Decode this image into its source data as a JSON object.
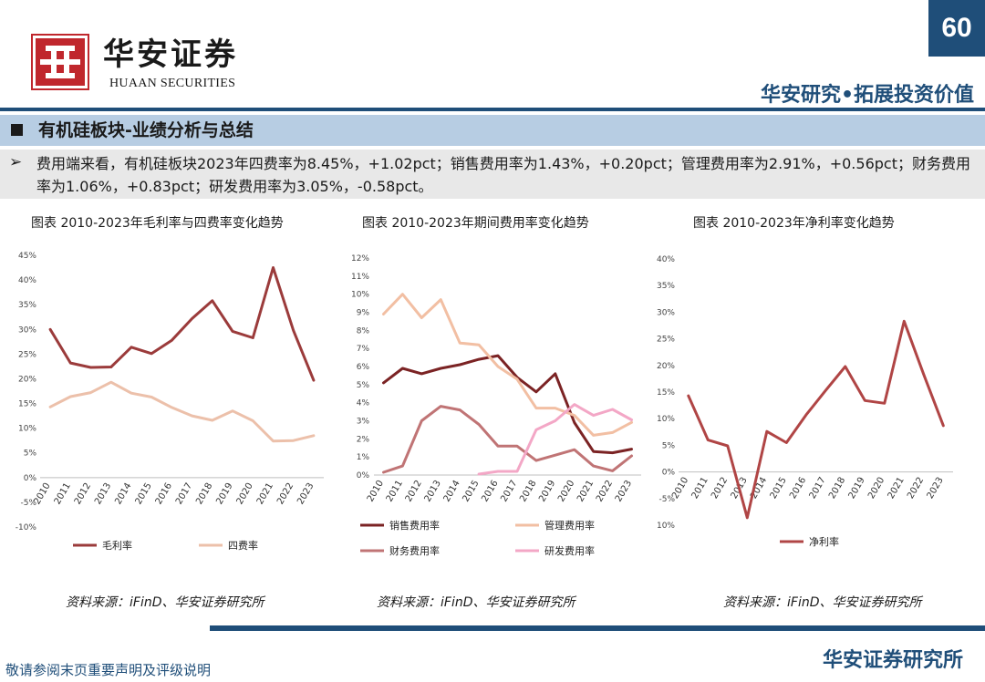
{
  "header": {
    "logo_cn": "华安证券",
    "logo_en": "HUAAN SECURITIES",
    "page_number": "60",
    "slogan": "华安研究•拓展投资价值",
    "brand_color": "#1f4e79",
    "logo_color": "#c0272d"
  },
  "section": {
    "title": "有机硅板块-业绩分析与总结",
    "bullet": "➢",
    "summary": "费用端来看，有机硅板块2023年四费率为8.45%，+1.02pct；销售费用率为1.43%，+0.20pct；管理费用率为2.91%，+0.56pct；财务费用率为1.06%，+0.83pct；研发费用率为3.05%，-0.58pct。"
  },
  "charts": {
    "titles": [
      "图表 2010-2023年毛利率与四费率变化趋势",
      "图表 2010-2023年期间费用率变化趋势",
      "图表 2010-2023年净利率变化趋势"
    ],
    "source": "资料来源：iFinD、华安证券研究所"
  },
  "chart_data": [
    {
      "type": "line",
      "title": "图表 2010-2023年毛利率与四费率变化趋势",
      "x": [
        "2010",
        "2011",
        "2012",
        "2013",
        "2014",
        "2015",
        "2016",
        "2017",
        "2018",
        "2019",
        "2020",
        "2021",
        "2022",
        "2023"
      ],
      "ylim": [
        -10,
        45
      ],
      "yticks": [
        -10,
        -5,
        0,
        5,
        10,
        15,
        20,
        25,
        30,
        35,
        40,
        45
      ],
      "series": [
        {
          "name": "毛利率",
          "color": "#9b3b3b",
          "values": [
            30.0,
            23.2,
            22.3,
            22.4,
            26.4,
            25.1,
            27.8,
            32.2,
            35.8,
            29.6,
            28.3,
            42.5,
            29.8,
            19.7
          ]
        },
        {
          "name": "四费率",
          "color": "#ecc0aa",
          "values": [
            14.3,
            16.4,
            17.2,
            19.3,
            17.1,
            16.3,
            14.2,
            12.5,
            11.6,
            13.5,
            11.5,
            7.4,
            7.5,
            8.5
          ]
        }
      ]
    },
    {
      "type": "line",
      "title": "图表 2010-2023年期间费用率变化趋势",
      "x": [
        "2010",
        "2011",
        "2012",
        "2013",
        "2014",
        "2015",
        "2016",
        "2017",
        "2018",
        "2019",
        "2020",
        "2021",
        "2022",
        "2023"
      ],
      "ylim": [
        0,
        12
      ],
      "yticks": [
        0,
        1,
        2,
        3,
        4,
        5,
        6,
        7,
        8,
        9,
        10,
        11,
        12
      ],
      "series": [
        {
          "name": "销售费用率",
          "color": "#7b2324",
          "values": [
            5.1,
            5.9,
            5.6,
            5.9,
            6.1,
            6.4,
            6.6,
            5.4,
            4.6,
            5.6,
            2.9,
            1.3,
            1.23,
            1.43
          ]
        },
        {
          "name": "管理费用率",
          "color": "#f2bfa3",
          "values": [
            8.9,
            10.0,
            8.7,
            9.7,
            7.3,
            7.2,
            6.0,
            5.3,
            3.7,
            3.7,
            3.3,
            2.2,
            2.35,
            2.91
          ]
        },
        {
          "name": "财务费用率",
          "color": "#c07475",
          "values": [
            0.15,
            0.5,
            3.0,
            3.8,
            3.6,
            2.8,
            1.6,
            1.6,
            0.8,
            1.1,
            1.4,
            0.5,
            0.23,
            1.06
          ]
        },
        {
          "name": "研发费用率",
          "color": "#f3a7c6",
          "values": [
            null,
            null,
            null,
            null,
            null,
            0.05,
            0.2,
            0.2,
            2.5,
            3.0,
            3.9,
            3.3,
            3.63,
            3.05
          ]
        }
      ]
    },
    {
      "type": "line",
      "title": "图表 2010-2023年净利率变化趋势",
      "x": [
        "2010",
        "2011",
        "2012",
        "2013",
        "2014",
        "2015",
        "2016",
        "2017",
        "2018",
        "2019",
        "2020",
        "2021",
        "2022",
        "2023"
      ],
      "ylim": [
        -10,
        40
      ],
      "yticks": [
        -10,
        -5,
        0,
        5,
        10,
        15,
        20,
        25,
        30,
        35,
        40
      ],
      "series": [
        {
          "name": "净利率",
          "color": "#b04545",
          "values": [
            14.3,
            6.0,
            4.9,
            -8.6,
            7.6,
            5.5,
            10.7,
            15.3,
            19.8,
            13.4,
            12.9,
            28.3,
            18.3,
            8.7
          ]
        }
      ]
    }
  ],
  "footer": {
    "disclaimer": "敬请参阅末页重要声明及评级说明",
    "institute": "华安证券研究所"
  }
}
